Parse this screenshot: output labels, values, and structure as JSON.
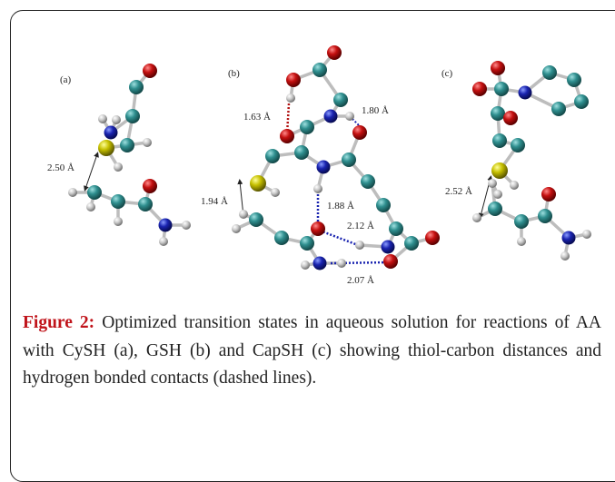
{
  "figure": {
    "panels": [
      {
        "label": "(a)",
        "distances": [
          "2.50 Å"
        ]
      },
      {
        "label": "(b)",
        "distances": [
          "1.63 Å",
          "1.80 Å",
          "1.94 Å",
          "1.88 Å",
          "2.12 Å",
          "2.07 Å"
        ]
      },
      {
        "label": "(c)",
        "distances": [
          "2.52 Å"
        ]
      }
    ],
    "caption": {
      "label": "Figure 2:",
      "text": "Optimized transition states in aqueous solution for reactions of AA with CySH (a), GSH (b) and CapSH (c) showing thiol-carbon distances and hydrogen bonded contacts (dashed lines)."
    }
  }
}
